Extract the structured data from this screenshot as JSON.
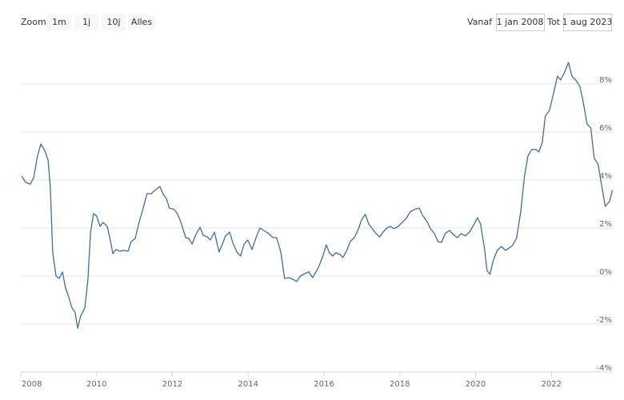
{
  "range_selector": {
    "zoom_label": "Zoom",
    "buttons": [
      "1m",
      "1j",
      "10j",
      "Alles"
    ],
    "from_label": "Vanaf",
    "from": "1 jan 2008",
    "to_label": "Tot",
    "to": "1 aug 2023"
  },
  "chart_data": {
    "type": "line",
    "color": "#416d9c",
    "grid": true,
    "xlim": [
      2008,
      2023.62
    ],
    "xticks": [
      2008,
      2010,
      2012,
      2014,
      2016,
      2018,
      2020,
      2022
    ],
    "ylim": [
      -4,
      9.8
    ],
    "yticks": [
      {
        "value": -4,
        "label": "-4%"
      },
      {
        "value": -2,
        "label": "-2%"
      },
      {
        "value": 0,
        "label": "0%"
      },
      {
        "value": 2,
        "label": "2%"
      },
      {
        "value": 4,
        "label": "4%"
      },
      {
        "value": 6,
        "label": "6%"
      },
      {
        "value": 8,
        "label": "8%"
      }
    ],
    "x": [
      2008.02,
      2008.13,
      2008.25,
      2008.34,
      2008.44,
      2008.53,
      2008.63,
      2008.72,
      2008.78,
      2008.84,
      2008.93,
      2009.01,
      2009.1,
      2009.18,
      2009.27,
      2009.35,
      2009.43,
      2009.5,
      2009.58,
      2009.69,
      2009.77,
      2009.84,
      2009.92,
      2010.0,
      2010.09,
      2010.17,
      2010.28,
      2010.36,
      2010.43,
      2010.51,
      2010.62,
      2010.72,
      2010.83,
      2010.91,
      2011.02,
      2011.12,
      2011.23,
      2011.33,
      2011.44,
      2011.54,
      2011.67,
      2011.76,
      2011.84,
      2011.92,
      2012.05,
      2012.14,
      2012.24,
      2012.35,
      2012.43,
      2012.52,
      2012.62,
      2012.73,
      2012.81,
      2012.92,
      2013.0,
      2013.11,
      2013.23,
      2013.32,
      2013.4,
      2013.51,
      2013.59,
      2013.7,
      2013.8,
      2013.89,
      2013.99,
      2014.1,
      2014.2,
      2014.31,
      2014.41,
      2014.54,
      2014.65,
      2014.75,
      2014.86,
      2014.96,
      2015.07,
      2015.17,
      2015.28,
      2015.38,
      2015.49,
      2015.6,
      2015.7,
      2015.81,
      2015.89,
      2015.97,
      2016.06,
      2016.14,
      2016.23,
      2016.31,
      2016.42,
      2016.5,
      2016.61,
      2016.69,
      2016.8,
      2016.9,
      2016.99,
      2017.09,
      2017.18,
      2017.26,
      2017.37,
      2017.47,
      2017.56,
      2017.66,
      2017.75,
      2017.85,
      2017.96,
      2018.06,
      2018.17,
      2018.27,
      2018.38,
      2018.51,
      2018.61,
      2018.72,
      2018.8,
      2018.91,
      2019.01,
      2019.1,
      2019.2,
      2019.31,
      2019.41,
      2019.52,
      2019.62,
      2019.73,
      2019.84,
      2019.94,
      2020.05,
      2020.13,
      2020.24,
      2020.3,
      2020.38,
      2020.47,
      2020.57,
      2020.68,
      2020.79,
      2020.89,
      2020.97,
      2021.08,
      2021.19,
      2021.29,
      2021.38,
      2021.48,
      2021.59,
      2021.67,
      2021.76,
      2021.84,
      2021.95,
      2022.05,
      2022.16,
      2022.24,
      2022.35,
      2022.45,
      2022.54,
      2022.64,
      2022.75,
      2022.83,
      2022.94,
      2023.04,
      2023.13,
      2023.23,
      2023.32,
      2023.42,
      2023.53,
      2023.61
    ],
    "values": [
      4.17,
      3.9,
      3.83,
      4.1,
      5.0,
      5.5,
      5.23,
      4.83,
      3.67,
      1.0,
      0,
      -0.1,
      0.17,
      -0.5,
      -0.9,
      -1.33,
      -1.5,
      -2.17,
      -1.67,
      -1.33,
      -0.17,
      1.83,
      2.6,
      2.5,
      2.07,
      2.23,
      2.07,
      1.5,
      0.93,
      1.1,
      1.03,
      1.07,
      1.03,
      1.43,
      1.57,
      2.23,
      2.83,
      3.43,
      3.43,
      3.57,
      3.73,
      3.4,
      3.23,
      2.83,
      2.77,
      2.57,
      2.17,
      1.6,
      1.57,
      1.33,
      1.73,
      2.03,
      1.7,
      1.63,
      1.5,
      1.83,
      1.0,
      1.33,
      1.67,
      1.83,
      1.4,
      1.0,
      0.83,
      1.33,
      1.5,
      1.1,
      1.57,
      2.0,
      1.9,
      1.77,
      1.6,
      1.6,
      1.0,
      -0.1,
      -0.07,
      -0.13,
      -0.23,
      0,
      0.1,
      0.17,
      -0.07,
      0.23,
      0.5,
      0.83,
      1.3,
      0.97,
      0.83,
      0.97,
      0.9,
      0.77,
      1.1,
      1.43,
      1.6,
      1.93,
      2.33,
      2.57,
      2.17,
      2.0,
      1.77,
      1.63,
      1.83,
      2.0,
      2.07,
      1.97,
      2.07,
      2.23,
      2.4,
      2.67,
      2.77,
      2.83,
      2.5,
      2.27,
      2.0,
      1.77,
      1.43,
      1.4,
      1.77,
      1.9,
      1.73,
      1.6,
      1.77,
      1.67,
      1.83,
      2.1,
      2.43,
      2.17,
      1.1,
      0.23,
      0.07,
      0.67,
      1.07,
      1.23,
      1.07,
      1.17,
      1.27,
      1.57,
      2.67,
      4.17,
      5.0,
      5.27,
      5.27,
      5.17,
      5.57,
      6.67,
      6.9,
      7.57,
      8.33,
      8.17,
      8.5,
      8.9,
      8.33,
      8.17,
      7.9,
      7.33,
      6.33,
      6.17,
      4.9,
      4.67,
      3.83,
      2.9,
      3.1,
      3.57
    ]
  }
}
